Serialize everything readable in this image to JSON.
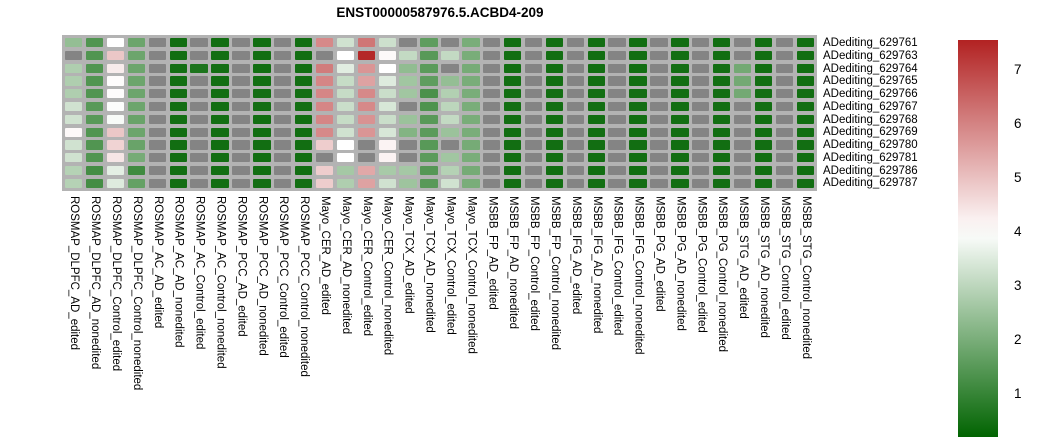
{
  "chart_data": {
    "type": "heatmap",
    "title": "ENST00000587976.5.ACBD4-209",
    "rows": [
      "ADediting_629761",
      "ADediting_629763",
      "ADediting_629764",
      "ADediting_629765",
      "ADediting_629766",
      "ADediting_629767",
      "ADediting_629768",
      "ADediting_629769",
      "ADediting_629780",
      "ADediting_629781",
      "ADediting_629786",
      "ADediting_629787"
    ],
    "columns": [
      "ROSMAP_DLPFC_AD_edited",
      "ROSMAP_DLPFC_AD_nonedited",
      "ROSMAP_DLPFC_Control_edited",
      "ROSMAP_DLPFC_Control_nonedited",
      "ROSMAP_AC_AD_edited",
      "ROSMAP_AC_AD_nonedited",
      "ROSMAP_AC_Control_edited",
      "ROSMAP_AC_Control_nonedited",
      "ROSMAP_PCC_AD_edited",
      "ROSMAP_PCC_AD_nonedited",
      "ROSMAP_PCC_Control_edited",
      "ROSMAP_PCC_Control_nonedited",
      "Mayo_CER_AD_edited",
      "Mayo_CER_AD_nonedited",
      "Mayo_CER_Control_edited",
      "Mayo_CER_Control_nonedited",
      "Mayo_TCX_AD_edited",
      "Mayo_TCX_AD_nonedited",
      "Mayo_TCX_Control_edited",
      "Mayo_TCX_Control_nonedited",
      "MSBB_FP_AD_edited",
      "MSBB_FP_AD_nonedited",
      "MSBB_FP_Control_edited",
      "MSBB_FP_Control_nonedited",
      "MSBB_IFG_AD_edited",
      "MSBB_IFG_AD_nonedited",
      "MSBB_IFG_Control_edited",
      "MSBB_IFG_Control_nonedited",
      "MSBB_PG_AD_edited",
      "MSBB_PG_AD_nonedited",
      "MSBB_PG_Control_edited",
      "MSBB_PG_Control_nonedited",
      "MSBB_STG_AD_edited",
      "MSBB_STG_AD_nonedited",
      "MSBB_STG_Control_edited",
      "MSBB_STG_Control_nonedited"
    ],
    "values": [
      [
        2.4,
        1.4,
        4.0,
        1.8,
        null,
        0.45,
        null,
        0.45,
        null,
        0.45,
        null,
        0.45,
        5.9,
        3.3,
        6.2,
        3.25,
        null,
        1.6,
        null,
        2.0,
        null,
        0.45,
        null,
        0.45,
        null,
        0.45,
        null,
        0.45,
        null,
        0.45,
        null,
        0.45,
        null,
        0.45,
        null,
        0.45
      ],
      [
        null,
        1.4,
        4.9,
        1.8,
        null,
        0.45,
        null,
        0.45,
        null,
        0.45,
        null,
        0.45,
        null,
        4.0,
        7.45,
        4.1,
        3.1,
        1.5,
        3.1,
        2.0,
        null,
        0.45,
        null,
        0.45,
        null,
        0.45,
        null,
        0.45,
        null,
        0.45,
        null,
        0.45,
        null,
        0.45,
        null,
        0.45
      ],
      [
        2.8,
        1.4,
        4.3,
        1.8,
        null,
        0.45,
        0.6,
        0.45,
        null,
        0.45,
        null,
        0.45,
        6.1,
        3.55,
        5.7,
        4.0,
        2.35,
        1.55,
        null,
        1.95,
        null,
        0.45,
        null,
        0.45,
        null,
        0.45,
        null,
        0.45,
        null,
        0.45,
        null,
        0.45,
        1.9,
        0.45,
        null,
        0.45
      ],
      [
        2.8,
        1.4,
        4.05,
        1.8,
        null,
        0.45,
        null,
        0.45,
        null,
        0.45,
        null,
        0.45,
        5.95,
        3.15,
        5.5,
        3.5,
        2.6,
        1.6,
        2.4,
        2.0,
        null,
        0.45,
        null,
        0.45,
        null,
        0.45,
        null,
        0.45,
        null,
        0.45,
        null,
        0.45,
        1.9,
        0.45,
        null,
        0.45
      ],
      [
        2.8,
        1.4,
        4.05,
        1.8,
        null,
        0.45,
        null,
        0.45,
        null,
        0.45,
        null,
        0.45,
        5.95,
        3.15,
        5.9,
        3.2,
        2.6,
        1.3,
        2.85,
        2.0,
        null,
        0.45,
        null,
        0.45,
        null,
        0.45,
        null,
        0.45,
        null,
        0.45,
        null,
        0.45,
        1.9,
        0.45,
        null,
        0.45
      ],
      [
        3.3,
        1.5,
        3.95,
        1.8,
        null,
        0.45,
        null,
        0.45,
        null,
        0.45,
        null,
        0.45,
        5.95,
        3.2,
        5.9,
        3.4,
        null,
        1.35,
        3.0,
        2.0,
        null,
        0.45,
        null,
        0.45,
        null,
        0.45,
        null,
        0.45,
        null,
        0.45,
        null,
        0.45,
        null,
        0.45,
        null,
        0.45
      ],
      [
        3.3,
        1.5,
        3.9,
        1.75,
        null,
        0.45,
        null,
        0.45,
        null,
        0.45,
        null,
        0.45,
        5.95,
        3.15,
        5.75,
        3.2,
        2.5,
        1.5,
        3.1,
        2.0,
        null,
        0.45,
        null,
        0.45,
        null,
        0.45,
        null,
        0.45,
        null,
        0.45,
        null,
        0.45,
        null,
        0.45,
        null,
        0.45
      ],
      [
        4.1,
        1.4,
        4.9,
        1.8,
        null,
        0.45,
        null,
        0.45,
        null,
        0.45,
        null,
        0.45,
        5.9,
        3.3,
        5.7,
        3.4,
        2.15,
        1.55,
        2.5,
        2.0,
        null,
        0.45,
        null,
        0.45,
        null,
        0.45,
        null,
        0.45,
        null,
        0.45,
        null,
        0.45,
        null,
        0.45,
        null,
        0.45
      ],
      [
        3.3,
        1.4,
        4.7,
        1.75,
        null,
        0.45,
        null,
        0.45,
        null,
        0.45,
        null,
        0.45,
        4.8,
        4.0,
        null,
        4.2,
        null,
        1.5,
        null,
        1.95,
        null,
        0.45,
        null,
        0.45,
        null,
        0.45,
        null,
        0.45,
        null,
        0.45,
        null,
        0.45,
        null,
        0.45,
        null,
        0.45
      ],
      [
        3.3,
        1.4,
        4.4,
        1.95,
        null,
        0.45,
        null,
        0.45,
        null,
        0.45,
        null,
        0.45,
        null,
        4.0,
        null,
        4.2,
        null,
        1.55,
        2.6,
        2.0,
        null,
        0.45,
        null,
        0.45,
        null,
        0.45,
        null,
        0.45,
        null,
        0.45,
        null,
        0.45,
        null,
        0.45,
        null,
        0.45
      ],
      [
        2.9,
        1.2,
        3.6,
        1.15,
        null,
        0.45,
        null,
        0.45,
        null,
        0.45,
        null,
        0.45,
        4.8,
        2.65,
        5.4,
        2.7,
        2.65,
        1.45,
        2.9,
        1.95,
        null,
        0.45,
        null,
        0.45,
        null,
        0.45,
        null,
        0.45,
        null,
        0.45,
        null,
        0.45,
        null,
        0.45,
        null,
        0.45
      ],
      [
        2.9,
        1.2,
        3.5,
        1.7,
        null,
        0.45,
        null,
        0.45,
        null,
        0.45,
        null,
        0.45,
        4.8,
        2.8,
        5.5,
        3.3,
        2.55,
        1.5,
        3.3,
        2.0,
        null,
        0.45,
        null,
        0.45,
        null,
        0.45,
        null,
        0.45,
        null,
        0.45,
        null,
        0.45,
        null,
        0.45,
        null,
        0.45
      ]
    ],
    "na_color": "#848484",
    "grid_color": "#b3b3b3",
    "colorbar": {
      "min": 0.2,
      "mid": 4,
      "max": 7.55,
      "low_color": "#016401",
      "mid_color": "#ffffff",
      "high_color": "#b22222",
      "ticks": [
        7,
        6,
        5,
        4,
        3,
        2,
        1
      ],
      "tick_labels": [
        "7",
        "6",
        "5",
        "4",
        "3",
        "2",
        "1"
      ],
      "legend_position": "right"
    },
    "grid": false
  }
}
